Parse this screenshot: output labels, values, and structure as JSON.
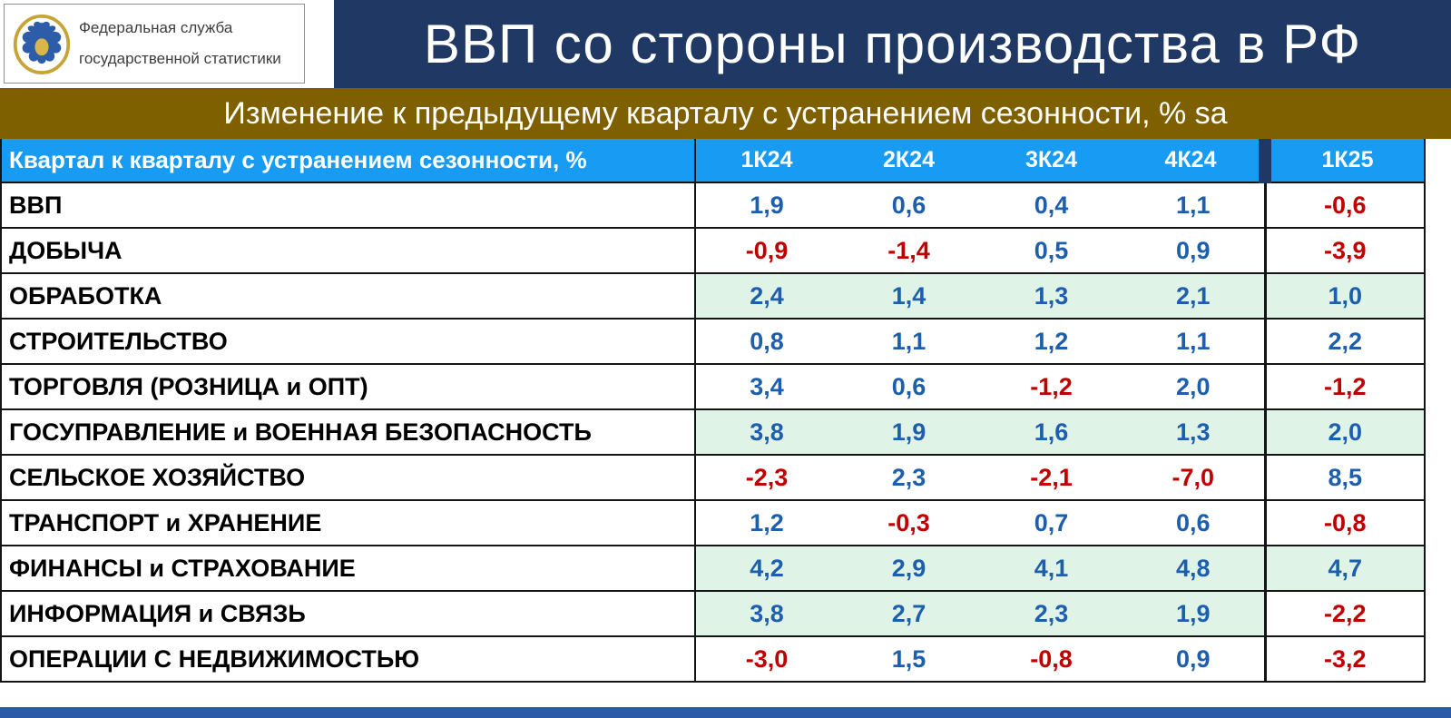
{
  "logo": {
    "line1": "Федеральная служба",
    "line2": "государственной статистики"
  },
  "title": "ВВП со стороны производства в РФ",
  "subtitle": "Изменение к предыдущему кварталу с устранением сезонности, % sa",
  "table": {
    "header_label": "Квартал к кварталу с устранением сезонности, %",
    "columns": [
      "1К24",
      "2К24",
      "3К24",
      "4К24",
      "1К25"
    ],
    "rows": [
      {
        "label": "ВВП",
        "values": [
          "1,9",
          "0,6",
          "0,4",
          "1,1",
          "-0,6"
        ],
        "green": [
          false,
          false,
          false,
          false,
          false
        ]
      },
      {
        "label": "ДОБЫЧА",
        "values": [
          "-0,9",
          "-1,4",
          "0,5",
          "0,9",
          "-3,9"
        ],
        "green": [
          false,
          false,
          false,
          false,
          false
        ]
      },
      {
        "label": "ОБРАБОТКА",
        "values": [
          "2,4",
          "1,4",
          "1,3",
          "2,1",
          "1,0"
        ],
        "green": [
          true,
          true,
          true,
          true,
          true
        ]
      },
      {
        "label": "СТРОИТЕЛЬСТВО",
        "values": [
          "0,8",
          "1,1",
          "1,2",
          "1,1",
          "2,2"
        ],
        "green": [
          false,
          false,
          false,
          false,
          false
        ]
      },
      {
        "label": "ТОРГОВЛЯ (РОЗНИЦА и ОПТ)",
        "values": [
          "3,4",
          "0,6",
          "-1,2",
          "2,0",
          "-1,2"
        ],
        "green": [
          false,
          false,
          false,
          false,
          false
        ]
      },
      {
        "label": "ГОСУПРАВЛЕНИЕ и ВОЕННАЯ БЕЗОПАСНОСТЬ",
        "values": [
          "3,8",
          "1,9",
          "1,6",
          "1,3",
          "2,0"
        ],
        "green": [
          true,
          true,
          true,
          true,
          true
        ]
      },
      {
        "label": "СЕЛЬСКОЕ ХОЗЯЙСТВО",
        "values": [
          "-2,3",
          "2,3",
          "-2,1",
          "-7,0",
          "8,5"
        ],
        "green": [
          false,
          false,
          false,
          false,
          false
        ]
      },
      {
        "label": "ТРАНСПОРТ и ХРАНЕНИЕ",
        "values": [
          "1,2",
          "-0,3",
          "0,7",
          "0,6",
          "-0,8"
        ],
        "green": [
          false,
          false,
          false,
          false,
          false
        ]
      },
      {
        "label": "ФИНАНСЫ и СТРАХОВАНИЕ",
        "values": [
          "4,2",
          "2,9",
          "4,1",
          "4,8",
          "4,7"
        ],
        "green": [
          true,
          true,
          true,
          true,
          true
        ]
      },
      {
        "label": "ИНФОРМАЦИЯ и СВЯЗЬ",
        "values": [
          "3,8",
          "2,7",
          "2,3",
          "1,9",
          "-2,2"
        ],
        "green": [
          true,
          true,
          true,
          true,
          false
        ]
      },
      {
        "label": "ОПЕРАЦИИ С НЕДВИЖИМОСТЬЮ",
        "values": [
          "-3,0",
          "1,5",
          "-0,8",
          "0,9",
          "-3,2"
        ],
        "green": [
          false,
          false,
          false,
          false,
          false
        ]
      }
    ]
  },
  "colors": {
    "navy": "#1F3864",
    "gold": "#7F6000",
    "hblue": "#189BF2",
    "pos": "#1E5FAD",
    "neg": "#C00000",
    "green": "#DFF3E6",
    "grid": "#141414",
    "bottomblue": "#2B5BA8"
  },
  "chart_data": {
    "type": "table",
    "title": "ВВП со стороны производства в РФ",
    "subtitle": "Изменение к предыдущему кварталу с устранением сезонности, % sa",
    "columns": [
      "1К24",
      "2К24",
      "3К24",
      "4К24",
      "1К25"
    ],
    "rows": [
      {
        "label": "ВВП",
        "values": [
          1.9,
          0.6,
          0.4,
          1.1,
          -0.6
        ]
      },
      {
        "label": "ДОБЫЧА",
        "values": [
          -0.9,
          -1.4,
          0.5,
          0.9,
          -3.9
        ]
      },
      {
        "label": "ОБРАБОТКА",
        "values": [
          2.4,
          1.4,
          1.3,
          2.1,
          1.0
        ]
      },
      {
        "label": "СТРОИТЕЛЬСТВО",
        "values": [
          0.8,
          1.1,
          1.2,
          1.1,
          2.2
        ]
      },
      {
        "label": "ТОРГОВЛЯ (РОЗНИЦА и ОПТ)",
        "values": [
          3.4,
          0.6,
          -1.2,
          2.0,
          -1.2
        ]
      },
      {
        "label": "ГОСУПРАВЛЕНИЕ и ВОЕННАЯ БЕЗОПАСНОСТЬ",
        "values": [
          3.8,
          1.9,
          1.6,
          1.3,
          2.0
        ]
      },
      {
        "label": "СЕЛЬСКОЕ ХОЗЯЙСТВО",
        "values": [
          -2.3,
          2.3,
          -2.1,
          -7.0,
          8.5
        ]
      },
      {
        "label": "ТРАНСПОРТ и ХРАНЕНИЕ",
        "values": [
          1.2,
          -0.3,
          0.7,
          0.6,
          -0.8
        ]
      },
      {
        "label": "ФИНАНСЫ и СТРАХОВАНИЕ",
        "values": [
          4.2,
          2.9,
          4.1,
          4.8,
          4.7
        ]
      },
      {
        "label": "ИНФОРМАЦИЯ и СВЯЗЬ",
        "values": [
          3.8,
          2.7,
          2.3,
          1.9,
          -2.2
        ]
      },
      {
        "label": "ОПЕРАЦИИ С НЕДВИЖИМОСТЬЮ",
        "values": [
          -3.0,
          1.5,
          -0.8,
          0.9,
          -3.2
        ]
      }
    ],
    "value_color_rule": "positive = blue, negative = red",
    "highlight": "mint-green background on rows ОБРАБОТКА, ГОСУПРАВЛЕНИЕ и ВОЕННАЯ БЕЗОПАСНОСТЬ, ФИНАНСЫ и СТРАХОВАНИЕ and ИНФОРМАЦИЯ и СВЯЗЬ (1К24–4К24)"
  }
}
